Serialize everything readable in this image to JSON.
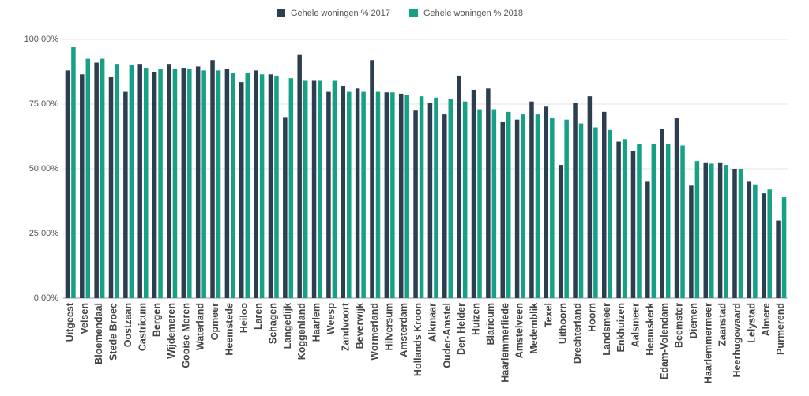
{
  "chart_data": {
    "type": "bar",
    "categories": [
      "Uitgeest",
      "Velsen",
      "Bloemendaal",
      "Stede Broec",
      "Oostzaan",
      "Castricum",
      "Bergen",
      "Wijdemeren",
      "Gooise Meren",
      "Waterland",
      "Opmeer",
      "Heemstede",
      "Heiloo",
      "Laren",
      "Schagen",
      "Langedijk",
      "Koggenland",
      "Haarlem",
      "Weesp",
      "Zandvoort",
      "Beverwijk",
      "Wormerland",
      "Hilversum",
      "Amsterdam",
      "Hollands Kroon",
      "Alkmaar",
      "Ouder-Amstel",
      "Den Helder",
      "Huizen",
      "Blaricum",
      "Haarlemmerliede",
      "Amstelveen",
      "Medemblik",
      "Texel",
      "Uithoorn",
      "Drechterland",
      "Hoorn",
      "Landsmeer",
      "Enkhuizen",
      "Aalsmeer",
      "Heemskerk",
      "Edam-Volendam",
      "Beemster",
      "Diemen",
      "Haarlemmermeer",
      "Zaanstad",
      "Heerhugowaard",
      "Lelystad",
      "Almere",
      "Purmerend"
    ],
    "series": [
      {
        "name": "Gehele woningen % 2017",
        "color": "#2c3e50",
        "values": [
          88,
          86.5,
          91,
          85.5,
          80,
          90.5,
          87.5,
          90.5,
          89,
          89.5,
          92,
          88.5,
          83.5,
          88,
          86.5,
          70,
          94,
          84,
          80,
          82,
          81,
          92,
          79.5,
          79,
          72.5,
          75.5,
          71,
          86,
          80.5,
          81,
          68,
          69,
          76,
          74,
          51.5,
          75.5,
          78,
          72,
          60.5,
          57,
          45,
          65.5,
          69.5,
          43.5,
          52.5,
          52.5,
          50,
          45,
          40.5,
          30
        ]
      },
      {
        "name": "Gehele woningen % 2018",
        "color": "#16a085",
        "values": [
          97,
          92.5,
          92.5,
          90.5,
          90,
          89,
          88.5,
          88.5,
          88.5,
          88,
          88,
          87,
          87,
          86.5,
          86,
          85,
          84,
          84,
          84,
          80,
          80,
          80,
          79.5,
          78.5,
          78,
          77.5,
          77,
          76,
          73,
          73,
          72,
          71,
          71,
          69.5,
          69,
          67.5,
          66,
          65,
          61.5,
          59.5,
          59.5,
          59.5,
          59,
          53,
          52,
          51.5,
          50,
          44,
          42,
          39
        ]
      }
    ],
    "ylim": [
      0,
      100
    ],
    "yticks": [
      {
        "value": 0,
        "label": "0.00%"
      },
      {
        "value": 25,
        "label": "25.00%"
      },
      {
        "value": 50,
        "label": "50.00%"
      },
      {
        "value": 75,
        "label": "75.00%"
      },
      {
        "value": 100,
        "label": "100.00%"
      }
    ],
    "grid": true,
    "legend": "top"
  }
}
